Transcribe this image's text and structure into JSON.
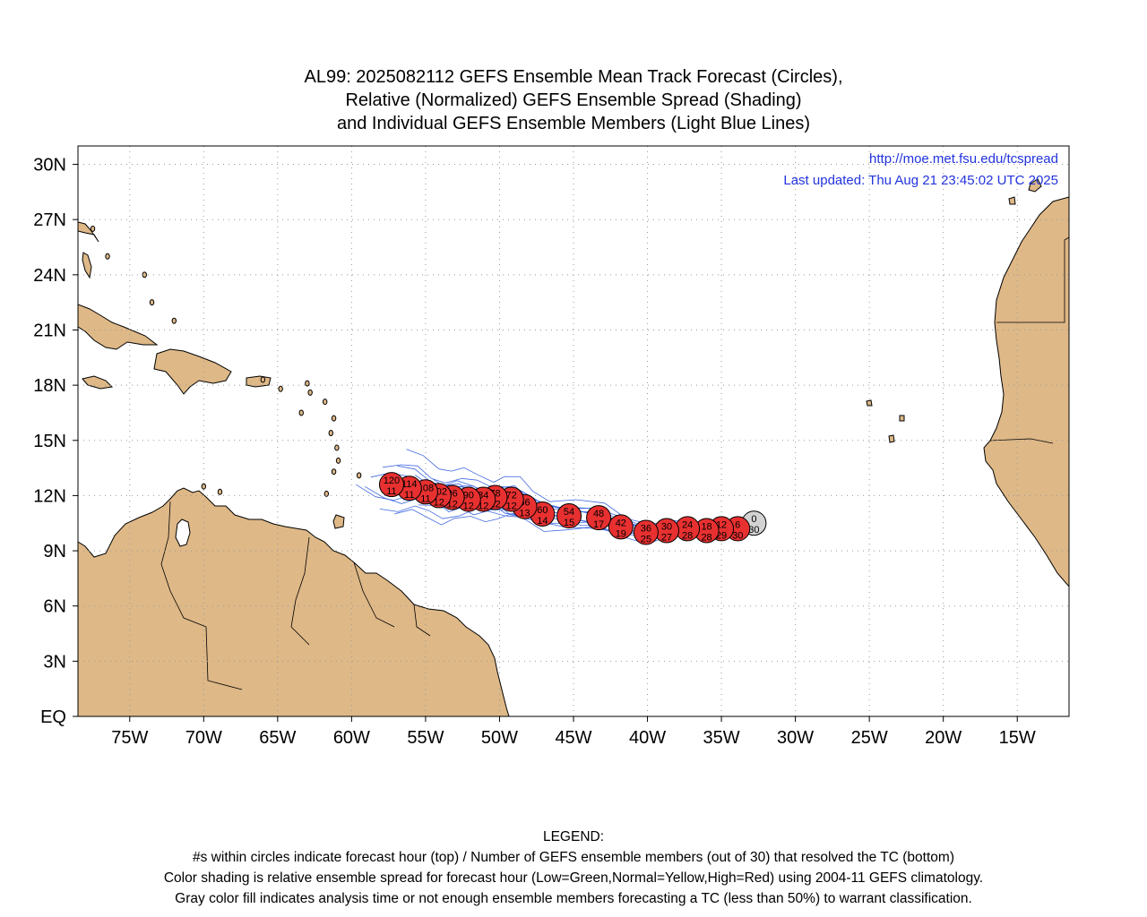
{
  "title": {
    "line1": "AL99: 2025082112 GEFS Ensemble Mean Track Forecast (Circles),",
    "line2": "Relative (Normalized) GEFS Ensemble Spread (Shading)",
    "line3": "and Individual GEFS Ensemble Members (Light Blue Lines)"
  },
  "info": {
    "url": "http://moe.met.fsu.edu/tcspread",
    "updated": "Last updated: Thu Aug 21 23:45:02 UTC 2025"
  },
  "axes": {
    "lat_ticks": [
      "30N",
      "27N",
      "24N",
      "21N",
      "18N",
      "15N",
      "12N",
      "9N",
      "6N",
      "3N",
      "EQ"
    ],
    "lon_ticks": [
      "75W",
      "70W",
      "65W",
      "60W",
      "55W",
      "50W",
      "45W",
      "40W",
      "35W",
      "30W",
      "25W",
      "20W",
      "15W"
    ],
    "lon_range": [
      -78.5,
      -11.5
    ],
    "lat_range": [
      0,
      31
    ]
  },
  "colors": {
    "land": "#deb887",
    "ocean": "#ffffff",
    "member_line": "#4169e1",
    "circle_fill": "#e83030",
    "analysis_fill": "#d3d3d3",
    "info_text": "#2233dd"
  },
  "track": [
    {
      "hour": "0",
      "members": "30",
      "lon": -32.8,
      "lat": 10.5,
      "analysis": true
    },
    {
      "hour": "6",
      "members": "30",
      "lon": -33.9,
      "lat": 10.2
    },
    {
      "hour": "12",
      "members": "29",
      "lon": -35.0,
      "lat": 10.2
    },
    {
      "hour": "18",
      "members": "28",
      "lon": -36.0,
      "lat": 10.1
    },
    {
      "hour": "24",
      "members": "28",
      "lon": -37.3,
      "lat": 10.2
    },
    {
      "hour": "30",
      "members": "27",
      "lon": -38.7,
      "lat": 10.1
    },
    {
      "hour": "36",
      "members": "25",
      "lon": -40.1,
      "lat": 10.0
    },
    {
      "hour": "42",
      "members": "19",
      "lon": -41.8,
      "lat": 10.3
    },
    {
      "hour": "48",
      "members": "17",
      "lon": -43.3,
      "lat": 10.8
    },
    {
      "hour": "54",
      "members": "15",
      "lon": -45.3,
      "lat": 10.9
    },
    {
      "hour": "60",
      "members": "14",
      "lon": -47.1,
      "lat": 11.0
    },
    {
      "hour": "66",
      "members": "13",
      "lon": -48.3,
      "lat": 11.4
    },
    {
      "hour": "72",
      "members": "12",
      "lon": -49.2,
      "lat": 11.8
    },
    {
      "hour": "78",
      "members": "12",
      "lon": -50.3,
      "lat": 11.9
    },
    {
      "hour": "84",
      "members": "12",
      "lon": -51.1,
      "lat": 11.8
    },
    {
      "hour": "90",
      "members": "12",
      "lon": -52.1,
      "lat": 11.8
    },
    {
      "hour": "96",
      "members": "12",
      "lon": -53.2,
      "lat": 11.9
    },
    {
      "hour": "102",
      "members": "12",
      "lon": -54.1,
      "lat": 12.0
    },
    {
      "hour": "108",
      "members": "11",
      "lon": -55.0,
      "lat": 12.2
    },
    {
      "hour": "114",
      "members": "11",
      "lon": -56.1,
      "lat": 12.4
    },
    {
      "hour": "120",
      "members": "11",
      "lon": -57.3,
      "lat": 12.6
    }
  ],
  "legend": {
    "heading": "LEGEND:",
    "line1": "#s within circles indicate forecast hour (top) / Number of GEFS ensemble members (out of 30) that resolved the TC (bottom)",
    "line2": "Color shading is relative ensemble spread for forecast hour (Low=Green,Normal=Yellow,High=Red) using 2004-11 GEFS climatology.",
    "line3": "Gray color fill indicates analysis time or not enough ensemble members forecasting a TC (less than 50%) to warrant classification."
  }
}
